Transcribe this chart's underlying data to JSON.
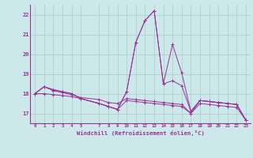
{
  "xlabel": "Windchill (Refroidissement éolien,°C)",
  "background_color": "#cce8e8",
  "grid_color": "#aacccc",
  "line_color": "#993399",
  "x_ticks": [
    0,
    1,
    2,
    3,
    4,
    5,
    7,
    8,
    9,
    10,
    11,
    12,
    13,
    14,
    15,
    16,
    17,
    18,
    19,
    20,
    21,
    22,
    23
  ],
  "ylim": [
    16.5,
    22.5
  ],
  "yticks": [
    17,
    18,
    19,
    20,
    21,
    22
  ],
  "series": [
    {
      "x": [
        0,
        1,
        2,
        3,
        4,
        5,
        7,
        8,
        9,
        10,
        11,
        12,
        13,
        14,
        15,
        16,
        17,
        18,
        19,
        20,
        21,
        22,
        23
      ],
      "y": [
        18.0,
        18.35,
        18.15,
        18.05,
        17.95,
        17.8,
        17.7,
        17.55,
        17.5,
        17.75,
        17.7,
        17.65,
        17.6,
        17.55,
        17.5,
        17.45,
        17.0,
        17.5,
        17.45,
        17.4,
        17.35,
        17.3,
        16.65
      ]
    },
    {
      "x": [
        0,
        1,
        2,
        3,
        4,
        5,
        7,
        8,
        9,
        10,
        11,
        12,
        13,
        14,
        15,
        16,
        17,
        18,
        19,
        20,
        21,
        22,
        23
      ],
      "y": [
        18.0,
        18.35,
        18.2,
        18.1,
        18.0,
        17.75,
        17.5,
        17.35,
        17.2,
        18.1,
        20.6,
        21.7,
        22.2,
        18.5,
        18.65,
        18.4,
        17.1,
        17.65,
        17.6,
        17.55,
        17.5,
        17.45,
        16.65
      ]
    },
    {
      "x": [
        0,
        1,
        2,
        3,
        4,
        5,
        7,
        8,
        9,
        10,
        11,
        12,
        13,
        14,
        15,
        16,
        17,
        18,
        19,
        20,
        21,
        22,
        23
      ],
      "y": [
        18.0,
        18.35,
        18.2,
        18.1,
        18.0,
        17.75,
        17.5,
        17.35,
        17.2,
        18.1,
        20.6,
        21.7,
        22.2,
        18.5,
        20.5,
        19.05,
        17.1,
        17.65,
        17.6,
        17.55,
        17.5,
        17.45,
        16.65
      ]
    },
    {
      "x": [
        0,
        1,
        2,
        3,
        4,
        5,
        7,
        8,
        9,
        10,
        11,
        12,
        13,
        14,
        15,
        16,
        17,
        18,
        19,
        20,
        21,
        22,
        23
      ],
      "y": [
        18.0,
        18.0,
        17.95,
        17.9,
        17.85,
        17.75,
        17.5,
        17.35,
        17.2,
        17.65,
        17.6,
        17.55,
        17.5,
        17.45,
        17.4,
        17.35,
        17.0,
        17.65,
        17.6,
        17.55,
        17.5,
        17.45,
        16.65
      ]
    }
  ]
}
